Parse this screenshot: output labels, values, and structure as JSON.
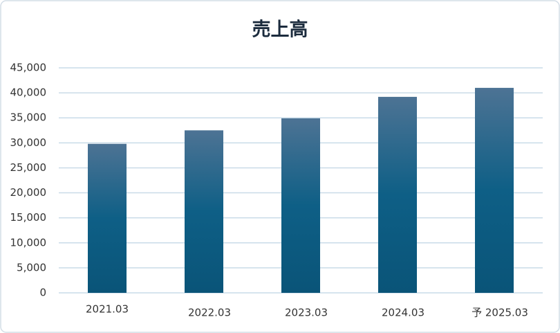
{
  "chart_data": {
    "type": "bar",
    "title": "売上高",
    "categories": [
      "2021.03",
      "2022.03",
      "2023.03",
      "2024.03",
      "予 2025.03"
    ],
    "values": [
      29800,
      32500,
      34900,
      39200,
      41000
    ],
    "color": "#0e5f86",
    "ylim": [
      0,
      45000
    ],
    "yticks": [
      0,
      {
        "value": 5000,
        "label": "5,000"
      },
      {
        "value": 10000,
        "label": "10,000"
      },
      {
        "value": 15000,
        "label": "15,000"
      },
      {
        "value": 20000,
        "label": "20,000"
      },
      {
        "value": 25000,
        "label": "25,000"
      },
      {
        "value": 30000,
        "label": "30,000"
      },
      {
        "value": 35000,
        "label": "35,000"
      },
      {
        "value": 40000,
        "label": "40,000"
      },
      {
        "value": 45000,
        "label": "45,000"
      }
    ],
    "grid": true
  }
}
